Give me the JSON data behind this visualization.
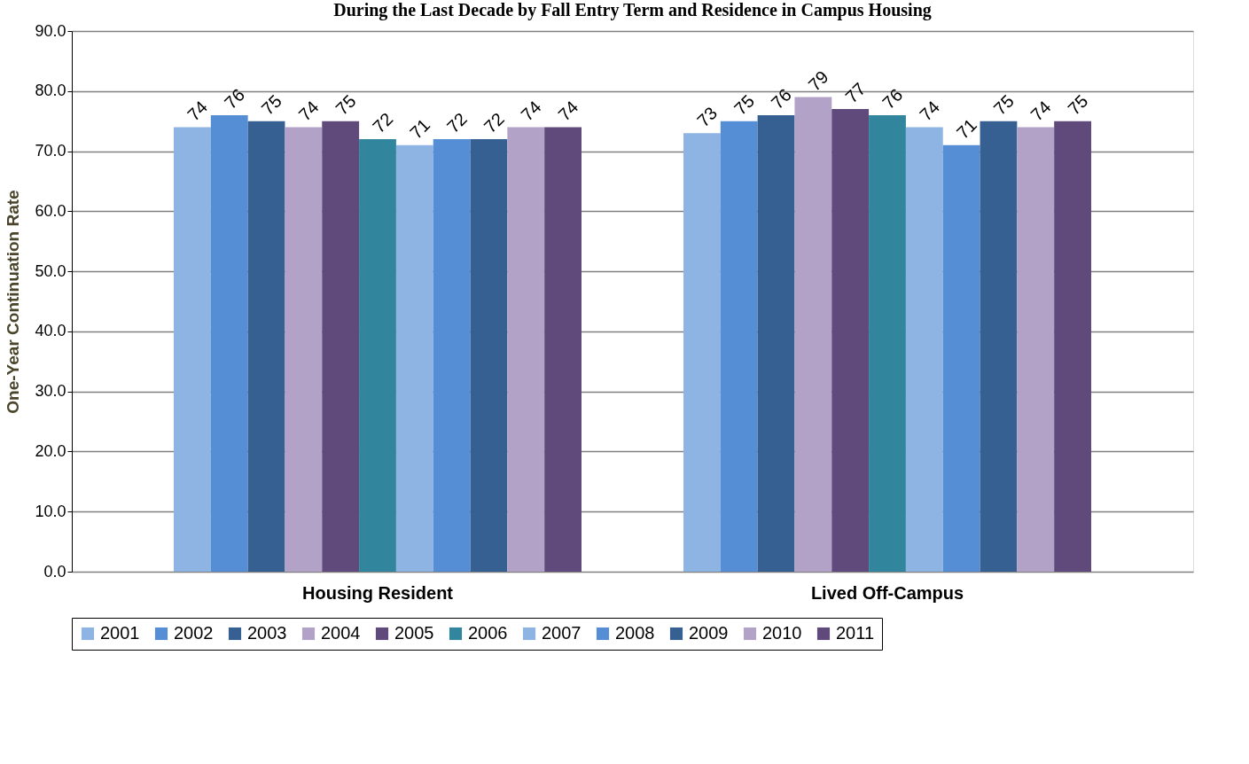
{
  "chart_data": {
    "type": "bar",
    "title": "During the Last Decade by Fall Entry Term and Residence in Campus Housing",
    "ylabel": "One-Year Continuation Rate",
    "categories": [
      "Housing Resident",
      "Lived Off-Campus"
    ],
    "series": [
      {
        "name": "2001",
        "color": "#8eb4e3",
        "values": [
          74,
          73
        ]
      },
      {
        "name": "2002",
        "color": "#558ed5",
        "values": [
          76,
          75
        ]
      },
      {
        "name": "2003",
        "color": "#376092",
        "values": [
          75,
          76
        ]
      },
      {
        "name": "2004",
        "color": "#b3a2c7",
        "values": [
          74,
          79
        ]
      },
      {
        "name": "2005",
        "color": "#604a7b",
        "values": [
          75,
          77
        ]
      },
      {
        "name": "2006",
        "color": "#31859c",
        "values": [
          72,
          76
        ]
      },
      {
        "name": "2007",
        "color": "#8eb4e3",
        "values": [
          71,
          74
        ]
      },
      {
        "name": "2008",
        "color": "#558ed5",
        "values": [
          72,
          71
        ]
      },
      {
        "name": "2009",
        "color": "#376092",
        "values": [
          72,
          75
        ]
      },
      {
        "name": "2010",
        "color": "#b3a2c7",
        "values": [
          74,
          74
        ]
      },
      {
        "name": "2011",
        "color": "#604a7b",
        "values": [
          74,
          75
        ]
      }
    ],
    "ylim": [
      0,
      90
    ],
    "yticks": [
      {
        "value": 0,
        "label": "0.0"
      },
      {
        "value": 10,
        "label": "10.0"
      },
      {
        "value": 20,
        "label": "20.0"
      },
      {
        "value": 30,
        "label": "30.0"
      },
      {
        "value": 40,
        "label": "40.0"
      },
      {
        "value": 50,
        "label": "50.0"
      },
      {
        "value": 60,
        "label": "60.0"
      },
      {
        "value": 70,
        "label": "70.0"
      },
      {
        "value": 80,
        "label": "80.0"
      },
      {
        "value": 90,
        "label": "90.0"
      }
    ],
    "grid": "y",
    "legend": "bottom",
    "data_labels": true
  }
}
